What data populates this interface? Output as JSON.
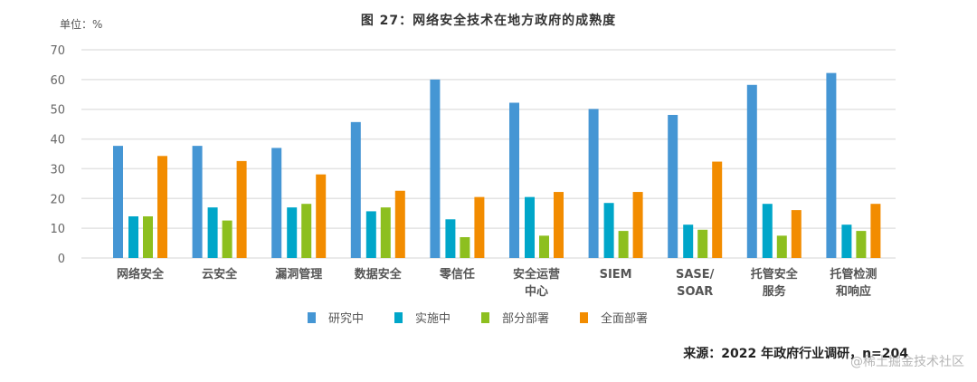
{
  "chart_data": {
    "type": "bar",
    "title": "图 27：网络安全技术在地方政府的成熟度",
    "unit_label": "单位：%",
    "xlabel": "",
    "ylabel": "",
    "ylim": [
      0,
      70
    ],
    "yticks": [
      0,
      10,
      20,
      30,
      40,
      50,
      60,
      70
    ],
    "grid": true,
    "legend_position": "bottom",
    "categories": [
      [
        "网络安全"
      ],
      [
        "云安全"
      ],
      [
        "漏洞管理"
      ],
      [
        "数据安全"
      ],
      [
        "零信任"
      ],
      [
        "安全运营",
        "中心"
      ],
      [
        "SIEM"
      ],
      [
        "SASE/",
        "SOAR"
      ],
      [
        "托管安全",
        "服务"
      ],
      [
        "托管检测",
        "和响应"
      ]
    ],
    "series": [
      {
        "name": "研究中",
        "color": "#4596d4",
        "values": [
          37.7,
          37.7,
          37.0,
          45.7,
          60.0,
          52.2,
          50.1,
          48.1,
          58.2,
          62.2
        ]
      },
      {
        "name": "实施中",
        "color": "#00a6c9",
        "values": [
          14.0,
          17.0,
          17.0,
          15.7,
          13.0,
          20.5,
          18.5,
          11.2,
          18.2,
          11.2
        ]
      },
      {
        "name": "部分部署",
        "color": "#8dbf1f",
        "values": [
          14.0,
          12.6,
          18.2,
          17.0,
          7.0,
          7.5,
          9.1,
          9.5,
          7.5,
          9.1
        ]
      },
      {
        "name": "全面部署",
        "color": "#f28c00",
        "values": [
          34.3,
          32.6,
          28.1,
          22.6,
          20.5,
          22.2,
          22.2,
          32.4,
          16.1,
          18.2
        ]
      }
    ],
    "source": "来源：2022 年政府行业调研，n=204",
    "watermark": "@稀土掘金技术社区"
  }
}
